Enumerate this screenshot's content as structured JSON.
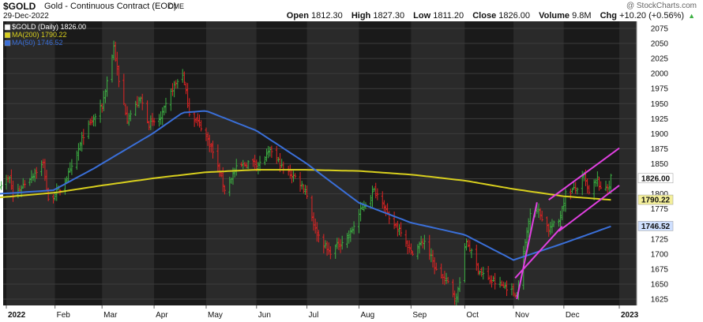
{
  "header": {
    "symbol": "$GOLD",
    "description": "Gold - Continuous Contract (EOD)",
    "exchange": "CME",
    "date": "29-Dec-2022",
    "watermark": "@ StockCharts.com",
    "open_label": "Open",
    "open": "1812.30",
    "high_label": "High",
    "high": "1827.30",
    "low_label": "Low",
    "low": "1811.20",
    "close_label": "Close",
    "close": "1826.00",
    "volume_label": "Volume",
    "volume": "9.8M",
    "chg_label": "Chg",
    "chg": "+10.20 (+0.56%)",
    "chg_arrow": "▲"
  },
  "chart_data": {
    "type": "candlestick",
    "title": "$GOLD Gold - Continuous Contract (EOD)",
    "legend": [
      {
        "label": "$GOLD (Daily) 1826.00",
        "color": "#111111"
      },
      {
        "label": "MA(200) 1790.22",
        "color": "#d8cf1e"
      },
      {
        "label": "MA(50) 1746.52",
        "color": "#3a6fd8"
      }
    ],
    "legend_position": "top-left",
    "ylim": [
      1610,
      2090
    ],
    "y_ticks": [
      1625,
      1650,
      1675,
      1700,
      1725,
      1750,
      1775,
      1800,
      1825,
      1850,
      1875,
      1900,
      1925,
      1950,
      1975,
      2000,
      2025,
      2050,
      2075
    ],
    "x_ticks": [
      {
        "label": "2022",
        "date": "2022-01-03"
      },
      {
        "label": "Feb",
        "date": "2022-02-01"
      },
      {
        "label": "Mar",
        "date": "2022-03-01"
      },
      {
        "label": "Apr",
        "date": "2022-04-01"
      },
      {
        "label": "May",
        "date": "2022-05-02"
      },
      {
        "label": "Jun",
        "date": "2022-06-01"
      },
      {
        "label": "Jul",
        "date": "2022-07-01"
      },
      {
        "label": "Aug",
        "date": "2022-08-01"
      },
      {
        "label": "Sep",
        "date": "2022-09-01"
      },
      {
        "label": "Oct",
        "date": "2022-10-03"
      },
      {
        "label": "Nov",
        "date": "2022-11-01"
      },
      {
        "label": "Dec",
        "date": "2022-12-01"
      },
      {
        "label": "2023",
        "date": "2023-01-03"
      }
    ],
    "price_anchors": [
      {
        "date": "2021-12-30",
        "close": 1815
      },
      {
        "date": "2022-01-05",
        "close": 1825
      },
      {
        "date": "2022-01-07",
        "close": 1795
      },
      {
        "date": "2022-01-14",
        "close": 1818
      },
      {
        "date": "2022-01-25",
        "close": 1850
      },
      {
        "date": "2022-01-28",
        "close": 1788
      },
      {
        "date": "2022-02-04",
        "close": 1808
      },
      {
        "date": "2022-02-11",
        "close": 1842
      },
      {
        "date": "2022-02-18",
        "close": 1898
      },
      {
        "date": "2022-02-24",
        "close": 1925
      },
      {
        "date": "2022-03-01",
        "close": 1945
      },
      {
        "date": "2022-03-08",
        "close": 2045
      },
      {
        "date": "2022-03-11",
        "close": 1985
      },
      {
        "date": "2022-03-16",
        "close": 1925
      },
      {
        "date": "2022-03-24",
        "close": 1958
      },
      {
        "date": "2022-03-29",
        "close": 1915
      },
      {
        "date": "2022-04-05",
        "close": 1925
      },
      {
        "date": "2022-04-12",
        "close": 1975
      },
      {
        "date": "2022-04-18",
        "close": 2000
      },
      {
        "date": "2022-04-22",
        "close": 1935
      },
      {
        "date": "2022-04-29",
        "close": 1912
      },
      {
        "date": "2022-05-05",
        "close": 1878
      },
      {
        "date": "2022-05-13",
        "close": 1808
      },
      {
        "date": "2022-05-20",
        "close": 1842
      },
      {
        "date": "2022-05-27",
        "close": 1852
      },
      {
        "date": "2022-06-03",
        "close": 1850
      },
      {
        "date": "2022-06-10",
        "close": 1872
      },
      {
        "date": "2022-06-17",
        "close": 1840
      },
      {
        "date": "2022-06-24",
        "close": 1828
      },
      {
        "date": "2022-06-30",
        "close": 1808
      },
      {
        "date": "2022-07-06",
        "close": 1740
      },
      {
        "date": "2022-07-14",
        "close": 1702
      },
      {
        "date": "2022-07-21",
        "close": 1718
      },
      {
        "date": "2022-07-27",
        "close": 1735
      },
      {
        "date": "2022-08-02",
        "close": 1772
      },
      {
        "date": "2022-08-10",
        "close": 1805
      },
      {
        "date": "2022-08-15",
        "close": 1790
      },
      {
        "date": "2022-08-19",
        "close": 1755
      },
      {
        "date": "2022-08-26",
        "close": 1740
      },
      {
        "date": "2022-09-01",
        "close": 1702
      },
      {
        "date": "2022-09-09",
        "close": 1722
      },
      {
        "date": "2022-09-16",
        "close": 1672
      },
      {
        "date": "2022-09-23",
        "close": 1652
      },
      {
        "date": "2022-09-28",
        "close": 1625
      },
      {
        "date": "2022-10-04",
        "close": 1722
      },
      {
        "date": "2022-10-11",
        "close": 1675
      },
      {
        "date": "2022-10-18",
        "close": 1655
      },
      {
        "date": "2022-10-21",
        "close": 1652
      },
      {
        "date": "2022-10-28",
        "close": 1645
      },
      {
        "date": "2022-11-03",
        "close": 1632
      },
      {
        "date": "2022-11-08",
        "close": 1718
      },
      {
        "date": "2022-11-11",
        "close": 1772
      },
      {
        "date": "2022-11-15",
        "close": 1775
      },
      {
        "date": "2022-11-22",
        "close": 1742
      },
      {
        "date": "2022-11-28",
        "close": 1755
      },
      {
        "date": "2022-12-02",
        "close": 1800
      },
      {
        "date": "2022-12-09",
        "close": 1810
      },
      {
        "date": "2022-12-13",
        "close": 1828
      },
      {
        "date": "2022-12-16",
        "close": 1800
      },
      {
        "date": "2022-12-21",
        "close": 1825
      },
      {
        "date": "2022-12-23",
        "close": 1805
      },
      {
        "date": "2022-12-28",
        "close": 1815
      },
      {
        "date": "2022-12-29",
        "close": 1826
      }
    ],
    "ma200_anchors": [
      {
        "date": "2021-12-30",
        "value": 1794
      },
      {
        "date": "2022-02-01",
        "value": 1802
      },
      {
        "date": "2022-03-01",
        "value": 1814
      },
      {
        "date": "2022-04-01",
        "value": 1826
      },
      {
        "date": "2022-05-02",
        "value": 1836
      },
      {
        "date": "2022-06-01",
        "value": 1840
      },
      {
        "date": "2022-07-01",
        "value": 1840
      },
      {
        "date": "2022-08-01",
        "value": 1838
      },
      {
        "date": "2022-09-01",
        "value": 1832
      },
      {
        "date": "2022-10-03",
        "value": 1822
      },
      {
        "date": "2022-11-01",
        "value": 1808
      },
      {
        "date": "2022-12-01",
        "value": 1796
      },
      {
        "date": "2022-12-29",
        "value": 1790
      }
    ],
    "ma50_anchors": [
      {
        "date": "2021-12-30",
        "value": 1800
      },
      {
        "date": "2022-01-31",
        "value": 1806
      },
      {
        "date": "2022-02-24",
        "value": 1842
      },
      {
        "date": "2022-03-31",
        "value": 1900
      },
      {
        "date": "2022-04-18",
        "value": 1935
      },
      {
        "date": "2022-05-02",
        "value": 1938
      },
      {
        "date": "2022-06-01",
        "value": 1905
      },
      {
        "date": "2022-07-01",
        "value": 1850
      },
      {
        "date": "2022-08-01",
        "value": 1785
      },
      {
        "date": "2022-09-01",
        "value": 1752
      },
      {
        "date": "2022-10-03",
        "value": 1732
      },
      {
        "date": "2022-11-01",
        "value": 1690
      },
      {
        "date": "2022-12-01",
        "value": 1718
      },
      {
        "date": "2022-12-29",
        "value": 1746
      }
    ],
    "trendlines": [
      {
        "color": "#e040e0",
        "from": {
          "date": "2022-11-03",
          "value": 1625
        },
        "to": {
          "date": "2022-11-15",
          "value": 1786
        }
      },
      {
        "color": "#e040e0",
        "from": {
          "date": "2022-11-02",
          "value": 1660
        },
        "to": {
          "date": "2022-11-30",
          "value": 1746
        }
      },
      {
        "color": "#e040e0",
        "from": {
          "date": "2022-11-22",
          "value": 1790
        },
        "to": {
          "date": "2023-01-03",
          "value": 1876
        }
      },
      {
        "color": "#e040e0",
        "from": {
          "date": "2022-11-28",
          "value": 1738
        },
        "to": {
          "date": "2023-01-03",
          "value": 1814
        }
      }
    ],
    "price_tags": [
      {
        "value": 1826.0,
        "label": "1826.00",
        "bg": "#ffffff",
        "fg": "#000000"
      },
      {
        "value": 1790.22,
        "label": "1790.22",
        "bg": "#f4ef9a",
        "fg": "#000000"
      },
      {
        "value": 1746.52,
        "label": "1746.52",
        "bg": "#cfe0ff",
        "fg": "#000000"
      }
    ],
    "colors": {
      "up": "#3cb043",
      "down": "#e02424",
      "band_dark": "#1a1a1a",
      "band_light": "#2a2a2a",
      "ma200": "#d8cf1e",
      "ma50": "#3a6fd8",
      "trendline": "#e040e0"
    }
  }
}
